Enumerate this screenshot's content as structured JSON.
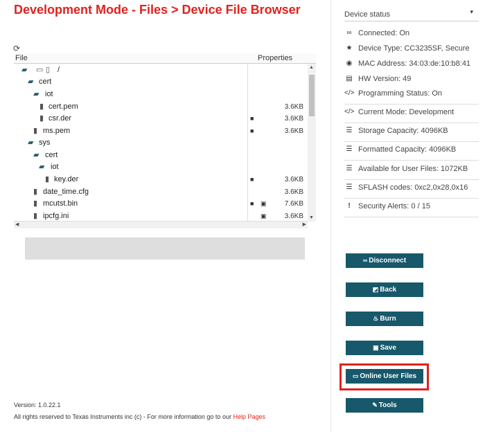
{
  "page": {
    "title": "Development Mode - Files > Device File Browser"
  },
  "file_table": {
    "columns": {
      "file": "File",
      "properties": "Properties"
    },
    "rows": [
      {
        "type": "root",
        "name": "/",
        "size": "",
        "lock": false,
        "save": false
      },
      {
        "type": "folder",
        "name": "cert",
        "size": "",
        "lock": false,
        "save": false
      },
      {
        "type": "folder",
        "name": "iot",
        "size": "",
        "lock": false,
        "save": false
      },
      {
        "type": "file",
        "name": "cert.pem",
        "size": "3.6KB",
        "lock": false,
        "save": false
      },
      {
        "type": "file",
        "name": "csr.der",
        "size": "3.6KB",
        "lock": true,
        "save": false
      },
      {
        "type": "file",
        "name": "ms.pem",
        "size": "3.6KB",
        "lock": true,
        "save": false
      },
      {
        "type": "folder",
        "name": "sys",
        "size": "",
        "lock": false,
        "save": false
      },
      {
        "type": "folder",
        "name": "cert",
        "size": "",
        "lock": false,
        "save": false
      },
      {
        "type": "folder",
        "name": "iot",
        "size": "",
        "lock": false,
        "save": false
      },
      {
        "type": "file",
        "name": "key.der",
        "size": "3.6KB",
        "lock": true,
        "save": false
      },
      {
        "type": "file",
        "name": "date_time.cfg",
        "size": "3.6KB",
        "lock": false,
        "save": false
      },
      {
        "type": "file",
        "name": "mcutst.bin",
        "size": "7.6KB",
        "lock": true,
        "save": true
      },
      {
        "type": "file",
        "name": "ipcfg.ini",
        "size": "3.6KB",
        "lock": false,
        "save": true
      }
    ]
  },
  "footer": {
    "version": "Version: 1.0.22.1",
    "rights": "All rights reserved to Texas Instruments inc (c) - For more information go to our ",
    "link": "Help Pages"
  },
  "device_status": {
    "title": "Device status",
    "items": [
      {
        "icon": "link-icon",
        "text": "Connected: On"
      },
      {
        "icon": "star-icon",
        "text": "Device Type: CC3235SF, Secure"
      },
      {
        "icon": "target-icon",
        "text": "MAC Address: 34:03:de:10:b8:41"
      },
      {
        "icon": "briefcase-icon",
        "text": "HW Version: 49"
      },
      {
        "icon": "code-icon",
        "text": "Programming Status: On"
      },
      {
        "icon": "code-icon",
        "text": "Current Mode: Development"
      },
      {
        "icon": "database-icon",
        "text": "Storage Capacity: 4096KB"
      },
      {
        "icon": "database-icon",
        "text": "Formatted Capacity: 4096KB"
      },
      {
        "icon": "database-icon",
        "text": "Available for User Files: 1072KB"
      },
      {
        "icon": "database-icon",
        "text": "SFLASH codes: 0xc2,0x28,0x16"
      },
      {
        "icon": "exclamation-icon",
        "text": "Security Alerts: 0 / 15"
      }
    ]
  },
  "buttons": {
    "disconnect": "Disconnect",
    "back": "Back",
    "burn": "Burn",
    "save": "Save",
    "online_user_files": "Online User Files",
    "tools": "Tools"
  },
  "colors": {
    "title": "#e0211d",
    "button": "#17586b",
    "highlight": "#e0211d"
  }
}
